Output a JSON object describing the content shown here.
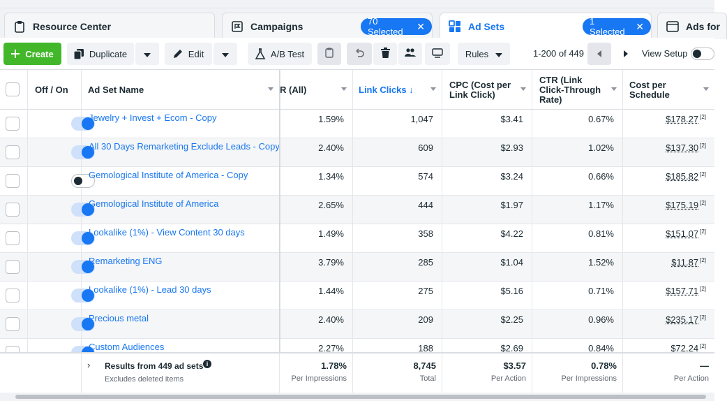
{
  "tabs": [
    {
      "label": "Resource Center"
    },
    {
      "label": "Campaigns",
      "badge": "70 Selected"
    },
    {
      "label": "Ad Sets",
      "badge": "1 Selected"
    },
    {
      "label": "Ads for"
    }
  ],
  "toolbar": {
    "create": "Create",
    "duplicate": "Duplicate",
    "edit": "Edit",
    "ab_test": "A/B Test",
    "rules": "Rules",
    "pager": "1-200 of 449",
    "view_setup": "View Setup"
  },
  "columns": {
    "off_on": "Off / On",
    "name": "Ad Set Name",
    "ctr_all": "R (All)",
    "link_clicks": "Link Clicks ↓",
    "cpc": [
      "CPC (Cost per",
      "Link Click)"
    ],
    "ctr_link": [
      "CTR (Link",
      "Click-Through",
      "Rate)"
    ],
    "cost_per": [
      "Cost per",
      "Schedule"
    ]
  },
  "rows": [
    {
      "on": true,
      "name": "Jewelry + Invest + Ecom - Copy",
      "ctr_all": "1.59%",
      "clicks": "1,047",
      "cpc": "$3.41",
      "ctr": "0.67%",
      "cost": "$178.27"
    },
    {
      "on": true,
      "name": "All 30 Days Remarketing Exclude Leads - Copy",
      "ctr_all": "2.40%",
      "clicks": "609",
      "cpc": "$2.93",
      "ctr": "1.02%",
      "cost": "$137.30"
    },
    {
      "on": false,
      "name": "Gemological Institute of America - Copy",
      "ctr_all": "1.34%",
      "clicks": "574",
      "cpc": "$3.24",
      "ctr": "0.66%",
      "cost": "$185.82"
    },
    {
      "on": true,
      "name": "Gemological Institute of America",
      "ctr_all": "2.65%",
      "clicks": "444",
      "cpc": "$1.97",
      "ctr": "1.17%",
      "cost": "$175.19"
    },
    {
      "on": true,
      "name": "Lookalike (1%) - View Content 30 days",
      "ctr_all": "1.49%",
      "clicks": "358",
      "cpc": "$4.22",
      "ctr": "0.81%",
      "cost": "$151.07"
    },
    {
      "on": true,
      "name": "Remarketing ENG",
      "ctr_all": "3.79%",
      "clicks": "285",
      "cpc": "$1.04",
      "ctr": "1.52%",
      "cost": "$11.87"
    },
    {
      "on": true,
      "name": "Lookalike (1%) - Lead 30 days",
      "ctr_all": "1.44%",
      "clicks": "275",
      "cpc": "$5.16",
      "ctr": "0.71%",
      "cost": "$157.71"
    },
    {
      "on": true,
      "name": "Precious metal",
      "ctr_all": "2.40%",
      "clicks": "209",
      "cpc": "$2.25",
      "ctr": "0.96%",
      "cost": "$235.17"
    },
    {
      "on": true,
      "name": "Custom Audiences",
      "ctr_all": "2.27%",
      "clicks": "188",
      "cpc": "$2.69",
      "ctr": "0.84%",
      "cost": "$72.24"
    }
  ],
  "footnote_marker": "[2]",
  "footer": {
    "title": "Results from 449 ad sets",
    "subtitle": "Excludes deleted items",
    "ctr_all": {
      "value": "1.78%",
      "sub": "Per Impressions"
    },
    "clicks": {
      "value": "8,745",
      "sub": "Total"
    },
    "cpc": {
      "value": "$3.57",
      "sub": "Per Action"
    },
    "ctr": {
      "value": "0.78%",
      "sub": "Per Impressions"
    },
    "cost": {
      "value": "—",
      "sub": "Per Action"
    }
  }
}
